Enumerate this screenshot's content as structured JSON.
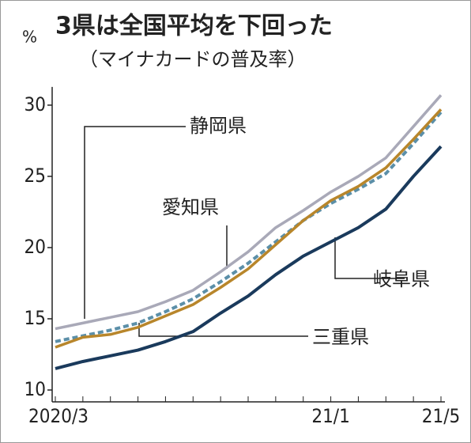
{
  "chart_data": {
    "type": "line",
    "title": "3県は全国平均を下回った",
    "subtitle": "（マイナカードの普及率）",
    "y_unit": "%",
    "categories": [
      "2020/3",
      null,
      null,
      null,
      null,
      null,
      null,
      null,
      null,
      null,
      "21/1",
      null,
      null,
      null,
      "21/5"
    ],
    "series": [
      {
        "name": "静岡県",
        "color": "#a9a9b8",
        "style": "solid",
        "values": [
          14.3,
          14.7,
          15.1,
          15.5,
          16.2,
          17.0,
          18.3,
          19.7,
          21.4,
          22.6,
          23.9,
          25.0,
          26.3,
          28.5,
          30.7
        ]
      },
      {
        "name": "愛知県",
        "color": "#5b8fa8",
        "style": "dashed",
        "values": [
          13.4,
          13.8,
          14.2,
          14.7,
          15.5,
          16.4,
          17.6,
          18.9,
          20.4,
          21.9,
          23.1,
          24.1,
          25.2,
          27.3,
          29.5
        ]
      },
      {
        "name": "三重県",
        "color": "#b8862b",
        "style": "solid",
        "values": [
          13.0,
          13.7,
          13.9,
          14.4,
          15.2,
          16.0,
          17.2,
          18.5,
          20.2,
          21.9,
          23.3,
          24.3,
          25.6,
          27.6,
          29.7
        ]
      },
      {
        "name": "岐阜県",
        "color": "#1a3a5c",
        "style": "solid",
        "values": [
          11.5,
          12.0,
          12.4,
          12.8,
          13.4,
          14.1,
          15.4,
          16.6,
          18.1,
          19.4,
          20.4,
          21.4,
          22.7,
          25.0,
          27.1
        ]
      }
    ],
    "ylim": [
      10,
      31
    ],
    "yticks": [
      10,
      15,
      20,
      25,
      30
    ],
    "grid": false
  }
}
